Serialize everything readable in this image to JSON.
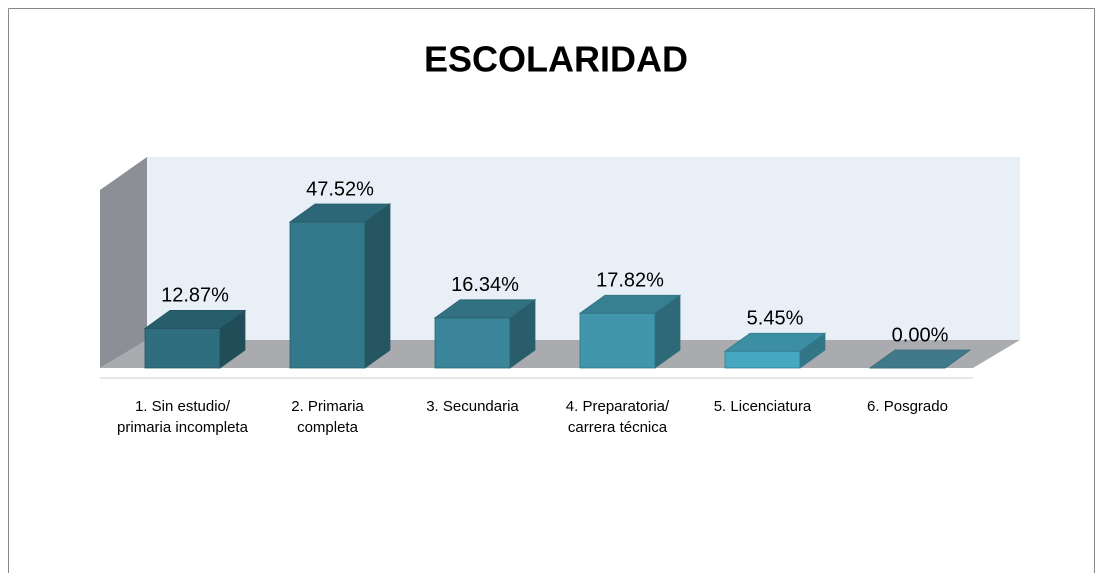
{
  "chart_data": {
    "type": "bar3d",
    "title": "ESCOLARIDAD",
    "categories": [
      "1. Sin estudio/ primaria incompleta",
      "2. Primaria completa",
      "3. Secundaria",
      "4. Preparatoria/ carrera técnica",
      "5. Licenciatura",
      "6. Posgrado"
    ],
    "values": [
      12.87,
      47.52,
      16.34,
      17.82,
      5.45,
      0.0
    ],
    "value_labels": [
      "12.87%",
      "47.52%",
      "16.34%",
      "17.82%",
      "5.45%",
      "0.00%"
    ],
    "colors": [
      "#2f6e7f",
      "#33798b",
      "#3a8599",
      "#4196ac",
      "#46a7c0",
      "#4a8ea2"
    ]
  }
}
